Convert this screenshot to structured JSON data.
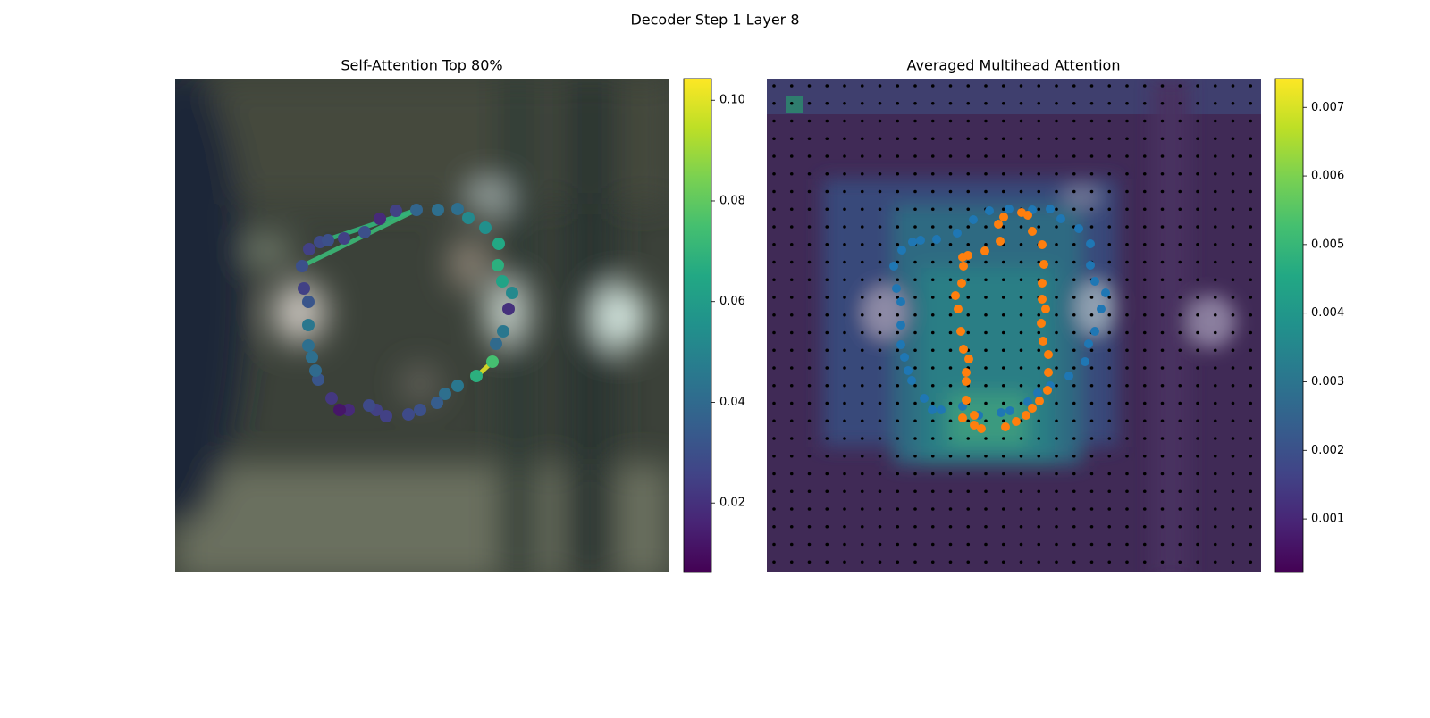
{
  "title": "Decoder Step 1 Layer 8",
  "chart_data": [
    {
      "type": "scatter",
      "title": "Self-Attention Top 80%",
      "colormap": "viridis",
      "xlim": [
        0,
        553
      ],
      "ylim": [
        553,
        0
      ],
      "clim": [
        0.0062,
        0.1043
      ],
      "cticks": [
        0.02,
        0.04,
        0.06,
        0.08,
        {
          "value": 0.1,
          "label": "0.10"
        }
      ],
      "x": [
        270,
        294,
        316,
        328,
        347,
        362,
        361,
        366,
        377,
        373,
        367,
        359,
        355,
        337,
        316,
        302,
        293,
        274,
        261,
        236,
        225,
        217,
        194,
        184,
        175,
        160,
        157,
        153,
        149,
        149,
        149,
        144,
        142,
        150,
        162,
        171,
        189,
        212,
        229,
        247
      ],
      "y": [
        147,
        147,
        146,
        156,
        167,
        185,
        209,
        227,
        240,
        258,
        283,
        297,
        317,
        333,
        344,
        353,
        363,
        371,
        376,
        378,
        371,
        366,
        371,
        371,
        358,
        337,
        327,
        312,
        299,
        276,
        250,
        235,
        210,
        191,
        183,
        181,
        179,
        172,
        157,
        148
      ],
      "values": [
        0.038,
        0.042,
        0.042,
        0.052,
        0.055,
        0.065,
        0.068,
        0.063,
        0.052,
        0.02,
        0.045,
        0.04,
        0.075,
        0.068,
        0.045,
        0.042,
        0.035,
        0.03,
        0.028,
        0.025,
        0.025,
        0.028,
        0.018,
        0.012,
        0.022,
        0.032,
        0.04,
        0.042,
        0.042,
        0.045,
        0.032,
        0.025,
        0.03,
        0.025,
        0.028,
        0.03,
        0.025,
        0.03,
        0.018,
        0.025
      ],
      "lines": [
        {
          "x": [
            270,
            142
          ],
          "y": [
            147,
            210
          ],
          "value": 0.072
        },
        {
          "x": [
            270,
            162
          ],
          "y": [
            147,
            183
          ],
          "value": 0.07
        },
        {
          "x": [
            355,
            341
          ],
          "y": [
            317,
            330
          ],
          "value": 0.1
        }
      ]
    },
    {
      "type": "scatter",
      "title": "Averaged Multihead Attention",
      "colormap": "viridis",
      "xlim": [
        0,
        553
      ],
      "ylim": [
        553,
        0
      ],
      "clim": [
        0.00022,
        0.00742
      ],
      "cticks": [
        0.001,
        0.002,
        0.003,
        0.004,
        0.005,
        0.006,
        0.007
      ],
      "series": [
        {
          "color": "#1f77b4",
          "x": [
            249,
            271,
            297,
            317,
            329,
            349,
            362,
            362,
            367,
            379,
            374,
            367,
            360,
            356,
            338,
            317,
            303,
            292,
            272,
            262,
            237,
            219,
            195,
            185,
            176,
            162,
            158,
            154,
            150,
            150,
            150,
            145,
            142,
            151,
            163,
            172,
            190,
            213,
            231
          ],
          "y": [
            148,
            146,
            147,
            146,
            157,
            168,
            185,
            209,
            227,
            240,
            258,
            283,
            297,
            317,
            333,
            344,
            352,
            362,
            372,
            374,
            377,
            367,
            371,
            371,
            358,
            338,
            327,
            312,
            298,
            276,
            250,
            235,
            210,
            192,
            183,
            181,
            180,
            173,
            158
          ]
        },
        {
          "color": "#ff7f0e",
          "x": [
            285,
            292,
            265,
            259,
            297,
            261,
            308,
            244,
            225,
            219,
            310,
            220,
            308,
            218,
            211,
            308,
            214,
            312,
            307,
            217,
            309,
            220,
            315,
            226,
            315,
            223,
            223,
            314,
            305,
            223,
            297,
            290,
            232,
            219,
            279,
            232,
            240,
            267
          ],
          "y": [
            150,
            153,
            155,
            163,
            171,
            182,
            186,
            193,
            198,
            200,
            208,
            210,
            229,
            229,
            243,
            247,
            258,
            258,
            274,
            283,
            294,
            303,
            309,
            314,
            329,
            329,
            339,
            349,
            361,
            360,
            369,
            377,
            377,
            380,
            384,
            388,
            392,
            390
          ]
        }
      ]
    }
  ]
}
